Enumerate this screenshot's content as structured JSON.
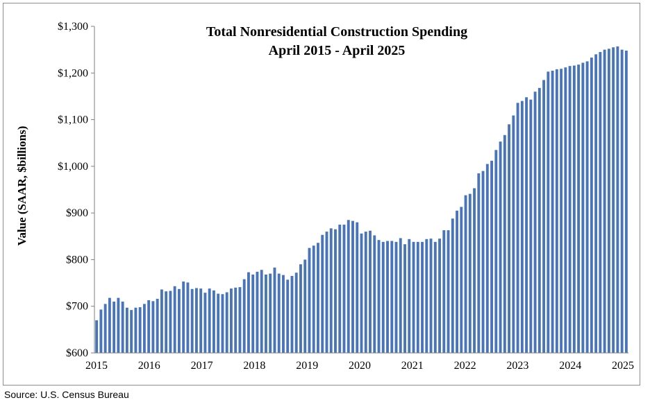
{
  "chart_data": {
    "type": "bar",
    "title": "Total Nonresidential Construction Spending",
    "subtitle": "April 2015 - April 2025",
    "ylabel": "Value (SAAR, $billions)",
    "ylim": [
      600,
      1300
    ],
    "yticks": [
      600,
      700,
      800,
      900,
      1000,
      1100,
      1200,
      1300
    ],
    "ytick_labels": [
      "$600",
      "$700",
      "$800",
      "$900",
      "$1,000",
      "$1,100",
      "$1,200",
      "$1,300"
    ],
    "xtick_labels": [
      "2015",
      "2016",
      "2017",
      "2018",
      "2019",
      "2020",
      "2021",
      "2022",
      "2023",
      "2024",
      "2025"
    ],
    "bar_color": "#4a74b8",
    "values": [
      670,
      693,
      705,
      718,
      710,
      718,
      710,
      697,
      692,
      697,
      698,
      705,
      713,
      711,
      716,
      736,
      732,
      733,
      743,
      737,
      753,
      751,
      737,
      739,
      738,
      729,
      738,
      734,
      727,
      726,
      730,
      738,
      740,
      741,
      758,
      773,
      768,
      774,
      778,
      768,
      770,
      783,
      770,
      767,
      757,
      765,
      772,
      790,
      800,
      825,
      830,
      836,
      853,
      860,
      867,
      865,
      875,
      875,
      885,
      883,
      880,
      856,
      860,
      862,
      852,
      842,
      838,
      840,
      840,
      838,
      846,
      833,
      844,
      838,
      838,
      838,
      844,
      845,
      838,
      845,
      863,
      863,
      888,
      905,
      913,
      938,
      941,
      953,
      985,
      990,
      1005,
      1012,
      1035,
      1053,
      1067,
      1090,
      1109,
      1136,
      1140,
      1148,
      1143,
      1160,
      1168,
      1185,
      1203,
      1205,
      1208,
      1209,
      1212,
      1215,
      1216,
      1218,
      1222,
      1225,
      1233,
      1240,
      1245,
      1250,
      1252,
      1255,
      1257,
      1250,
      1248
    ]
  },
  "footer": {
    "source": "Source: U.S. Census Bureau"
  }
}
